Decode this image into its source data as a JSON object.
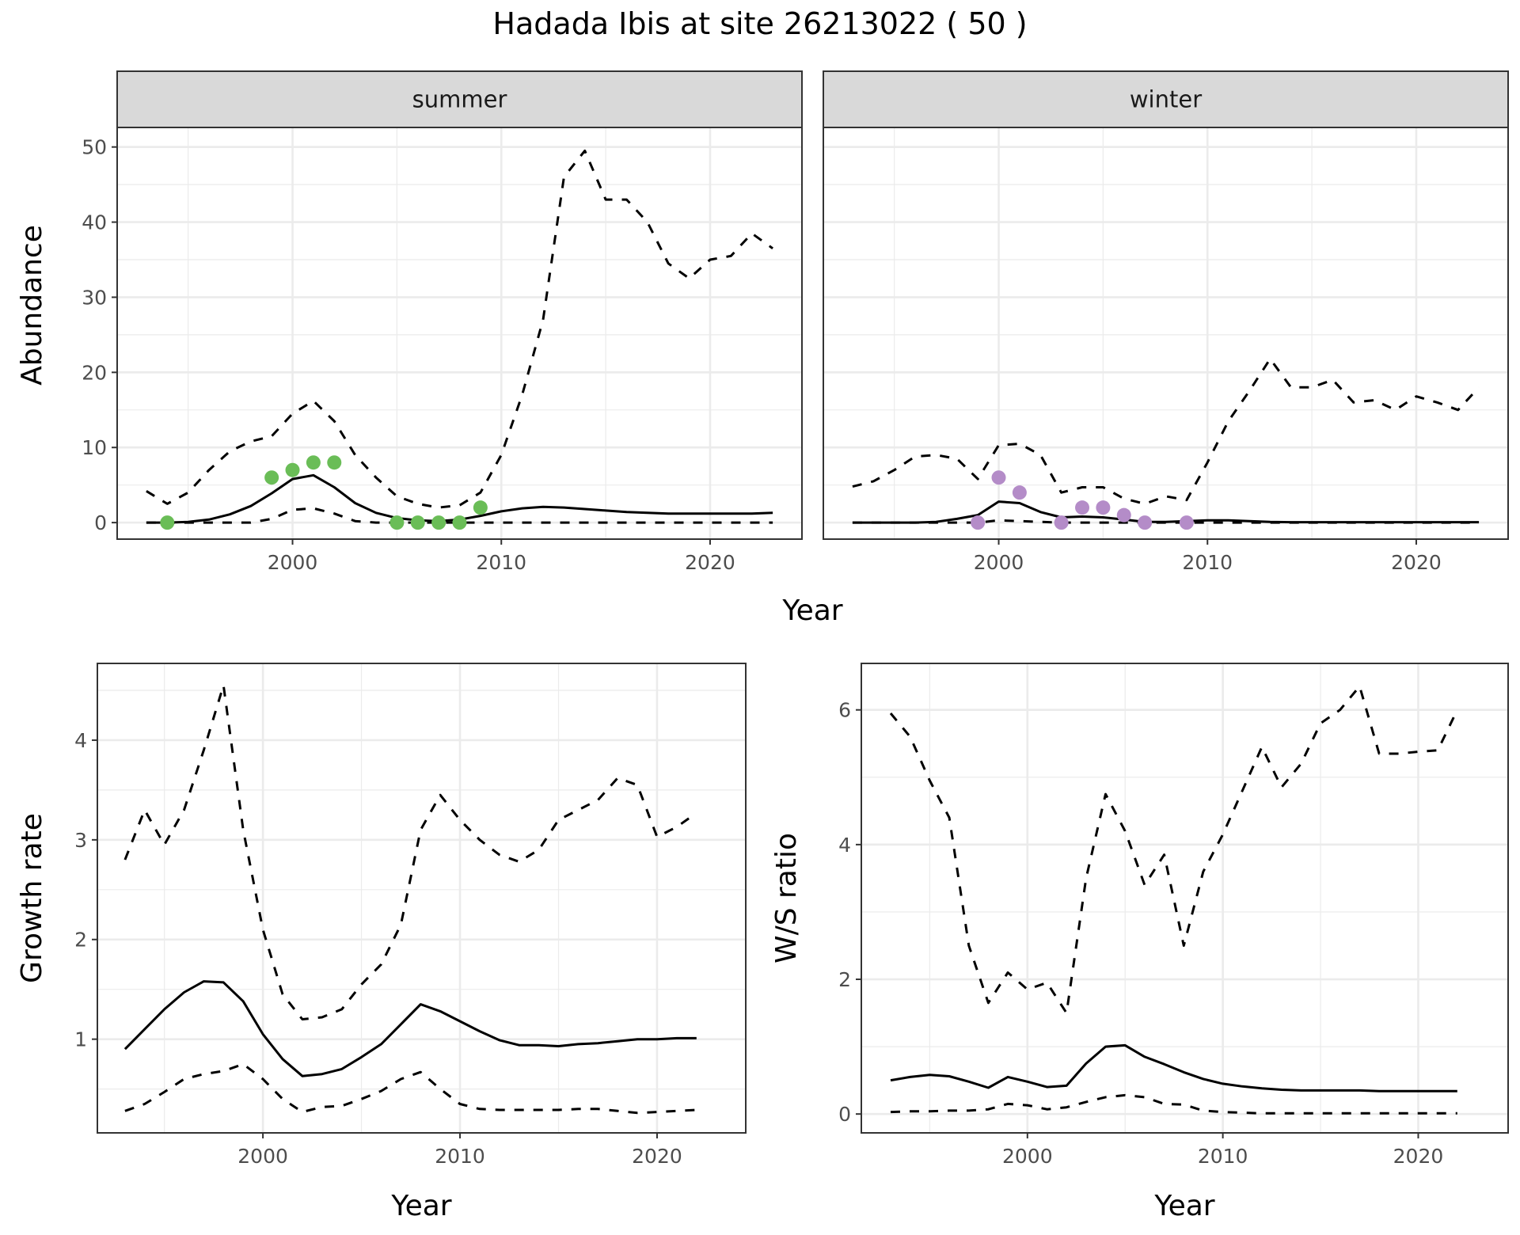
{
  "title": "Hadada Ibis at site 26213022 ( 50 )",
  "colors": {
    "summer_points": "#6abd57",
    "winter_points": "#b48cc8",
    "line": "#000000",
    "strip": "#d9d9d9",
    "grid": "#ebebeb"
  },
  "chart_data": [
    {
      "type": "line",
      "panel": "summer",
      "strip_label": "summer",
      "xlabel": "Year",
      "ylabel": "Abundance",
      "xlim": [
        1991.6,
        2024.4
      ],
      "ylim": [
        -2.2,
        52.6
      ],
      "xticks": [
        2000,
        2010,
        2020
      ],
      "yticks": [
        0,
        10,
        20,
        30,
        40,
        50
      ],
      "x": [
        1993,
        1994,
        1995,
        1996,
        1997,
        1998,
        1999,
        2000,
        2001,
        2002,
        2003,
        2004,
        2005,
        2006,
        2007,
        2008,
        2009,
        2010,
        2011,
        2012,
        2013,
        2014,
        2015,
        2016,
        2017,
        2018,
        2019,
        2020,
        2021,
        2022,
        2023
      ],
      "series": [
        {
          "name": "mean",
          "style": "solid",
          "values": [
            0,
            0,
            0.1,
            0.4,
            1.1,
            2.2,
            3.9,
            5.8,
            6.3,
            4.7,
            2.6,
            1.3,
            0.6,
            0.3,
            0.2,
            0.4,
            0.9,
            1.5,
            1.9,
            2.1,
            2.0,
            1.8,
            1.6,
            1.4,
            1.3,
            1.2,
            1.2,
            1.2,
            1.2,
            1.2,
            1.3
          ]
        },
        {
          "name": "upper",
          "style": "dashed",
          "values": [
            4.2,
            2.5,
            4,
            7,
            9.5,
            10.8,
            11.5,
            14.5,
            16.2,
            13.5,
            9,
            6,
            3.5,
            2.5,
            2,
            2.3,
            4,
            9,
            17,
            27,
            46,
            49.5,
            43,
            43,
            40,
            34.5,
            32.5,
            35,
            35.5,
            38.5,
            36.5
          ]
        },
        {
          "name": "lower",
          "style": "dashed",
          "values": [
            0,
            0,
            0,
            0,
            0,
            0,
            0.5,
            1.7,
            1.9,
            1.2,
            0.2,
            0,
            0,
            0,
            0,
            0,
            0,
            0,
            0,
            0,
            0,
            0,
            0,
            0,
            0,
            0,
            0,
            0,
            0,
            0,
            0
          ]
        }
      ],
      "points": {
        "x": [
          1994,
          1999,
          2000,
          2001,
          2002,
          2005,
          2006,
          2007,
          2008,
          2009
        ],
        "y": [
          0,
          6,
          7,
          8,
          8,
          0,
          0,
          0,
          0,
          2
        ]
      }
    },
    {
      "type": "line",
      "panel": "winter",
      "strip_label": "winter",
      "xlabel": "Year",
      "ylabel": "Abundance",
      "xlim": [
        1991.6,
        2024.4
      ],
      "ylim": [
        -2.2,
        52.6
      ],
      "xticks": [
        2000,
        2010,
        2020
      ],
      "yticks": [
        0,
        10,
        20,
        30,
        40,
        50
      ],
      "x": [
        1993,
        1994,
        1995,
        1996,
        1997,
        1998,
        1999,
        2000,
        2001,
        2002,
        2003,
        2004,
        2005,
        2006,
        2007,
        2008,
        2009,
        2010,
        2011,
        2012,
        2013,
        2014,
        2015,
        2016,
        2017,
        2018,
        2019,
        2020,
        2021,
        2022,
        2023
      ],
      "series": [
        {
          "name": "mean",
          "style": "solid",
          "values": [
            0,
            0,
            0,
            0,
            0.1,
            0.5,
            1,
            2.8,
            2.6,
            1.4,
            0.7,
            0.8,
            0.7,
            0.4,
            0.1,
            0.1,
            0.2,
            0.3,
            0.3,
            0.2,
            0.1,
            0.05,
            0.05,
            0.05,
            0.05,
            0.05,
            0.05,
            0.05,
            0.05,
            0.05,
            0.05
          ]
        },
        {
          "name": "upper",
          "style": "dashed",
          "values": [
            4.8,
            5.5,
            7,
            8.8,
            9,
            8.5,
            5.8,
            10.3,
            10.5,
            9,
            4,
            4.7,
            4.7,
            3.2,
            2.5,
            3.5,
            3,
            8,
            13.5,
            17.5,
            21.8,
            18,
            18,
            19,
            16,
            16.3,
            15,
            16.8,
            16,
            15,
            18
          ]
        },
        {
          "name": "lower",
          "style": "dashed",
          "values": [
            0,
            0,
            0,
            0,
            0,
            0,
            0,
            0.3,
            0.2,
            0.1,
            0,
            0,
            0,
            0,
            0,
            0,
            0,
            0,
            0,
            0,
            0,
            0,
            0,
            0,
            0,
            0,
            0,
            0,
            0,
            0,
            0
          ]
        }
      ],
      "points": {
        "x": [
          1999,
          2000,
          2001,
          2003,
          2004,
          2005,
          2006,
          2007,
          2009
        ],
        "y": [
          0,
          6,
          4,
          0,
          2,
          2,
          1,
          0,
          0
        ]
      }
    },
    {
      "type": "line",
      "panel": "growth",
      "xlabel": "Year",
      "ylabel": "Growth rate",
      "xlim": [
        1991.6,
        2024.5
      ],
      "ylim": [
        0.06,
        4.77
      ],
      "xticks": [
        2000,
        2010,
        2020
      ],
      "yticks": [
        1,
        2,
        3,
        4
      ],
      "x": [
        1993,
        1994,
        1995,
        1996,
        1997,
        1998,
        1999,
        2000,
        2001,
        2002,
        2003,
        2004,
        2005,
        2006,
        2007,
        2008,
        2009,
        2010,
        2011,
        2012,
        2013,
        2014,
        2015,
        2016,
        2017,
        2018,
        2019,
        2020,
        2021,
        2022
      ],
      "series": [
        {
          "name": "mean",
          "style": "solid",
          "values": [
            0.9,
            1.1,
            1.3,
            1.47,
            1.58,
            1.57,
            1.38,
            1.05,
            0.8,
            0.63,
            0.65,
            0.7,
            0.82,
            0.95,
            1.15,
            1.35,
            1.28,
            1.18,
            1.08,
            0.99,
            0.94,
            0.94,
            0.93,
            0.95,
            0.96,
            0.98,
            1.0,
            1.0,
            1.01,
            1.01
          ]
        },
        {
          "name": "upper",
          "style": "dashed",
          "values": [
            2.8,
            3.3,
            2.95,
            3.3,
            3.9,
            4.55,
            3.1,
            2.1,
            1.45,
            1.2,
            1.22,
            1.3,
            1.55,
            1.75,
            2.15,
            3.1,
            3.45,
            3.2,
            3.0,
            2.85,
            2.78,
            2.9,
            3.2,
            3.3,
            3.4,
            3.62,
            3.55,
            3.03,
            3.13,
            3.27
          ]
        },
        {
          "name": "lower",
          "style": "dashed",
          "values": [
            0.28,
            0.35,
            0.47,
            0.6,
            0.65,
            0.68,
            0.75,
            0.6,
            0.4,
            0.27,
            0.32,
            0.33,
            0.4,
            0.48,
            0.6,
            0.67,
            0.5,
            0.35,
            0.3,
            0.29,
            0.29,
            0.29,
            0.29,
            0.3,
            0.3,
            0.28,
            0.26,
            0.27,
            0.28,
            0.29
          ]
        }
      ]
    },
    {
      "type": "line",
      "panel": "ws",
      "xlabel": "Year",
      "ylabel": "W/S ratio",
      "xlim": [
        1991.5,
        2024.6
      ],
      "ylim": [
        -0.28,
        6.69
      ],
      "xticks": [
        2000,
        2010,
        2020
      ],
      "yticks": [
        0,
        2,
        4,
        6
      ],
      "x": [
        1993,
        1994,
        1995,
        1996,
        1997,
        1998,
        1999,
        2000,
        2001,
        2002,
        2003,
        2004,
        2005,
        2006,
        2007,
        2008,
        2009,
        2010,
        2011,
        2012,
        2013,
        2014,
        2015,
        2016,
        2017,
        2018,
        2019,
        2020,
        2021,
        2022
      ],
      "series": [
        {
          "name": "mean",
          "style": "solid",
          "values": [
            0.5,
            0.55,
            0.58,
            0.56,
            0.48,
            0.39,
            0.55,
            0.48,
            0.4,
            0.42,
            0.75,
            1.0,
            1.02,
            0.85,
            0.74,
            0.62,
            0.52,
            0.45,
            0.41,
            0.38,
            0.36,
            0.35,
            0.35,
            0.35,
            0.35,
            0.34,
            0.34,
            0.34,
            0.34,
            0.34
          ]
        },
        {
          "name": "upper",
          "style": "dashed",
          "values": [
            5.95,
            5.6,
            4.95,
            4.4,
            2.5,
            1.65,
            2.1,
            1.85,
            1.95,
            1.5,
            3.5,
            4.75,
            4.2,
            3.4,
            3.85,
            2.5,
            3.6,
            4.15,
            4.8,
            5.45,
            4.85,
            5.2,
            5.8,
            6.0,
            6.35,
            5.35,
            5.35,
            5.38,
            5.4,
            6.0
          ]
        },
        {
          "name": "lower",
          "style": "dashed",
          "values": [
            0.03,
            0.04,
            0.04,
            0.05,
            0.05,
            0.07,
            0.15,
            0.13,
            0.07,
            0.1,
            0.18,
            0.25,
            0.28,
            0.25,
            0.15,
            0.14,
            0.05,
            0.03,
            0.02,
            0.01,
            0.01,
            0.01,
            0.01,
            0.01,
            0.01,
            0.01,
            0.01,
            0.01,
            0.01,
            0.01
          ]
        }
      ]
    }
  ]
}
